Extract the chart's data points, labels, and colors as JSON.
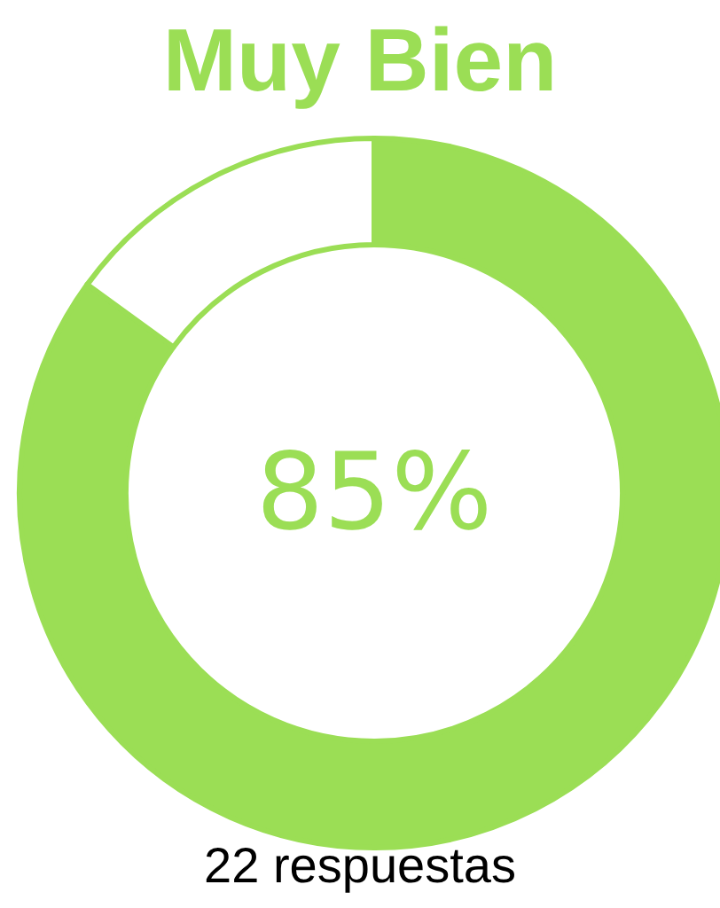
{
  "chart_data": {
    "type": "donut",
    "title": "Muy Bien",
    "categories": [
      null,
      null
    ],
    "values": [
      85,
      15
    ],
    "colors": [
      "#9bde55",
      "#ffffff"
    ],
    "value_labels": [
      "85%",
      null
    ],
    "annotations": [
      "22 respuestas"
    ]
  }
}
